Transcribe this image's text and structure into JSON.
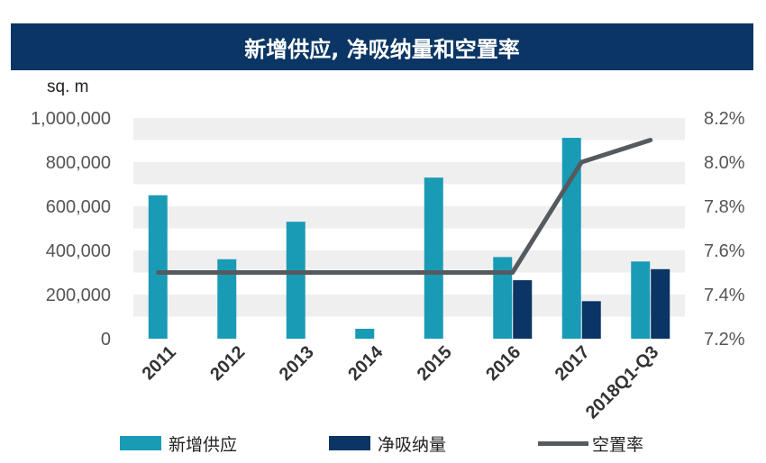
{
  "title": "新增供应, 净吸纳量和空置率",
  "colors": {
    "title_bg": "#0a3564",
    "bar_supply": "#1a9bb5",
    "bar_absorption": "#0a3564",
    "line_vacancy": "#555a5e",
    "band": "#efefef",
    "axis_text": "#555555"
  },
  "chart_data": {
    "type": "bar",
    "title": "新增供应, 净吸纳量和空置率",
    "categories": [
      "2011",
      "2012",
      "2013",
      "2014",
      "2015",
      "2016",
      "2017",
      "2018Q1-Q3"
    ],
    "left_axis": {
      "label": "sq. m",
      "ticks": [
        "1,000,000",
        "800,000",
        "600,000",
        "400,000",
        "200,000",
        "0"
      ],
      "range": [
        0,
        1000000
      ]
    },
    "right_axis": {
      "ticks": [
        "8.2%",
        "8.0%",
        "7.8%",
        "7.6%",
        "7.4%",
        "7.2%"
      ],
      "range": [
        7.2,
        8.2
      ]
    },
    "series": [
      {
        "name": "新增供应",
        "type": "bar",
        "axis": "left",
        "values": [
          650000,
          360000,
          530000,
          45000,
          730000,
          370000,
          910000,
          350000
        ]
      },
      {
        "name": "净吸纳量",
        "type": "bar",
        "axis": "left",
        "values": [
          null,
          null,
          null,
          null,
          null,
          265000,
          170000,
          315000
        ]
      },
      {
        "name": "空置率",
        "type": "line",
        "axis": "right",
        "values": [
          7.5,
          7.5,
          7.5,
          7.5,
          7.5,
          7.5,
          8.0,
          8.1
        ]
      }
    ],
    "grid": "alternating bands",
    "legend": "bottom"
  }
}
